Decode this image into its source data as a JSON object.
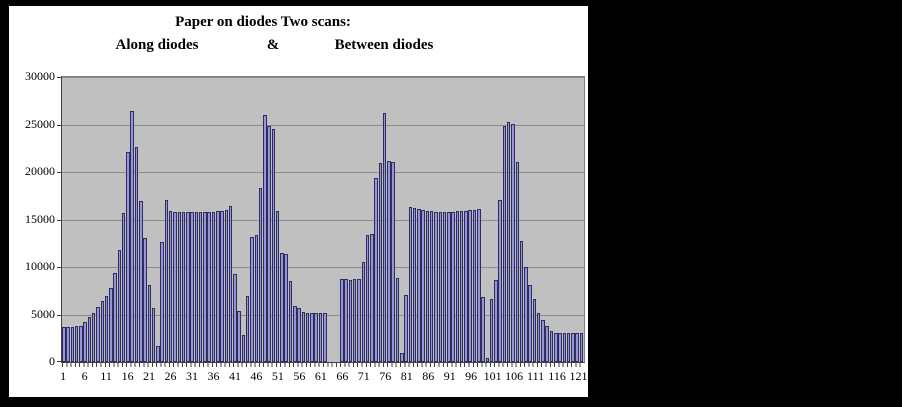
{
  "chart": {
    "title_line1": "Paper on diodes Two scans:",
    "subtitle_left": "Along diodes",
    "subtitle_mid": "&",
    "subtitle_right": "Between diodes"
  },
  "chart_data": {
    "type": "bar",
    "title": "Paper on diodes Two scans: Along diodes & Between diodes",
    "xlabel": "",
    "ylabel": "",
    "ylim": [
      0,
      30000
    ],
    "y_ticks": [
      0,
      5000,
      10000,
      15000,
      20000,
      25000,
      30000
    ],
    "x_tick_labels": [
      "1",
      "6",
      "11",
      "16",
      "21",
      "26",
      "31",
      "36",
      "41",
      "46",
      "51",
      "56",
      "61",
      "66",
      "71",
      "76",
      "81",
      "86",
      "91",
      "96",
      "101",
      "106",
      "111",
      "116",
      "121"
    ],
    "num_categories": 122,
    "grid": "horizontal",
    "legend_position": "none",
    "plot_background": "#C0C0C0",
    "bar_fill": "#9494D6",
    "bar_border": "#2E2E5E",
    "gridline_color": "#8C8C8C",
    "values": [
      3700,
      3650,
      3700,
      3750,
      3800,
      4200,
      4700,
      5200,
      5800,
      6400,
      6900,
      7800,
      9400,
      11800,
      15700,
      22100,
      26400,
      22600,
      17000,
      13100,
      8100,
      5700,
      1700,
      12600,
      17100,
      15900,
      15800,
      15800,
      15750,
      15800,
      15800,
      15750,
      15800,
      15800,
      15750,
      15800,
      15850,
      15900,
      16000,
      16400,
      9250,
      5400,
      2800,
      6900,
      13200,
      13400,
      18300,
      26000,
      24800,
      24500,
      15900,
      11500,
      11400,
      8500,
      5900,
      5700,
      5250,
      5200,
      5200,
      5150,
      5200,
      5200,
      0,
      0,
      0,
      8700,
      8700,
      8650,
      8700,
      8750,
      10500,
      13400,
      13500,
      19400,
      21000,
      26200,
      21200,
      21100,
      8800,
      1000,
      7100,
      16300,
      16200,
      16100,
      16000,
      15900,
      15850,
      15800,
      15800,
      15800,
      15800,
      15800,
      15850,
      15900,
      15900,
      16000,
      16000,
      16100,
      6800,
      450,
      6600,
      8650,
      17100,
      24800,
      25300,
      25100,
      21100,
      12700,
      10050,
      8150,
      6600,
      5200,
      4450,
      3750,
      3230,
      3100,
      3050,
      3050,
      3050,
      3050,
      3050,
      3050
    ]
  }
}
